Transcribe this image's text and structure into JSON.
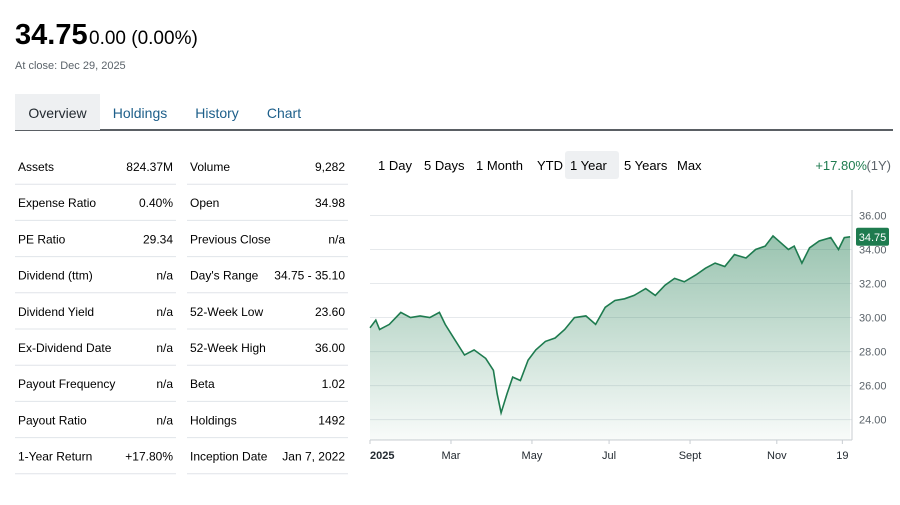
{
  "header": {
    "price": "34.75",
    "change": "0.00 (0.00%)",
    "close_note": "At close: Dec 29, 2025"
  },
  "tabs": [
    "Overview",
    "Holdings",
    "History",
    "Chart"
  ],
  "active_tab": 0,
  "stats_left": [
    [
      "Assets",
      "824.37M"
    ],
    [
      "Expense Ratio",
      "0.40%"
    ],
    [
      "PE Ratio",
      "29.34"
    ],
    [
      "Dividend (ttm)",
      "n/a"
    ],
    [
      "Dividend Yield",
      "n/a"
    ],
    [
      "Ex-Dividend Date",
      "n/a"
    ],
    [
      "Payout Frequency",
      "n/a"
    ],
    [
      "Payout Ratio",
      "n/a"
    ],
    [
      "1-Year Return",
      "+17.80%"
    ]
  ],
  "stats_right": [
    [
      "Volume",
      "9,282"
    ],
    [
      "Open",
      "34.98"
    ],
    [
      "Previous Close",
      "n/a"
    ],
    [
      "Day's Range",
      "34.75 - 35.10"
    ],
    [
      "52-Week Low",
      "23.60"
    ],
    [
      "52-Week High",
      "36.00"
    ],
    [
      "Beta",
      "1.02"
    ],
    [
      "Holdings",
      "1492"
    ],
    [
      "Inception Date",
      "Jan 7, 2022"
    ]
  ],
  "ranges": [
    "1 Day",
    "5 Days",
    "1 Month",
    "YTD",
    "1 Year",
    "5 Years",
    "Max"
  ],
  "active_range": 4,
  "performance": "+17.80%",
  "performance_period": "(1Y)",
  "chart": {
    "type": "line",
    "color": "#1e7b4f",
    "x": [
      0,
      3,
      5,
      10,
      16,
      21,
      26,
      31,
      36,
      39,
      44,
      49,
      54,
      60,
      64,
      66,
      68,
      71,
      74,
      78,
      82,
      86,
      91,
      96,
      101,
      106,
      112,
      117,
      122,
      127,
      132,
      137,
      143,
      148,
      153,
      158,
      163,
      169,
      174,
      179,
      184,
      189,
      195,
      200,
      205,
      209,
      213,
      217,
      220,
      224,
      228,
      233,
      239,
      243,
      246,
      249
    ],
    "values": [
      29.4,
      29.85,
      29.3,
      29.6,
      30.3,
      30.0,
      30.1,
      30.0,
      30.3,
      29.6,
      28.7,
      27.8,
      28.1,
      27.6,
      26.9,
      25.5,
      24.4,
      25.5,
      26.5,
      26.3,
      27.5,
      28.1,
      28.6,
      28.8,
      29.3,
      30.0,
      30.1,
      29.6,
      30.6,
      31.0,
      31.1,
      31.3,
      31.7,
      31.3,
      31.9,
      32.3,
      32.1,
      32.5,
      32.9,
      33.2,
      33.0,
      33.7,
      33.5,
      34.0,
      34.2,
      34.8,
      34.4,
      34.0,
      34.2,
      33.2,
      34.1,
      34.5,
      34.7,
      34.0,
      34.7,
      34.75
    ],
    "last_label": {
      "value": 34.75,
      "label": "34.75"
    },
    "xlim": [
      0,
      250
    ],
    "xticks": [
      {
        "value": 0,
        "label": "2025"
      },
      {
        "value": 42,
        "label": "Mar"
      },
      {
        "value": 84,
        "label": "May"
      },
      {
        "value": 124,
        "label": "Jul"
      },
      {
        "value": 166,
        "label": "Sept"
      },
      {
        "value": 211,
        "label": "Nov"
      },
      {
        "value": 245,
        "label": "19"
      }
    ],
    "ylim": [
      22.8,
      37.5
    ],
    "yticks": [
      {
        "value": 24,
        "label": "24.00"
      },
      {
        "value": 26,
        "label": "26.00"
      },
      {
        "value": 28,
        "label": "28.00"
      },
      {
        "value": 30,
        "label": "30.00"
      },
      {
        "value": 32,
        "label": "32.00"
      },
      {
        "value": 34,
        "label": "34.00"
      },
      {
        "value": 36,
        "label": "36.00"
      }
    ],
    "grid": true
  }
}
